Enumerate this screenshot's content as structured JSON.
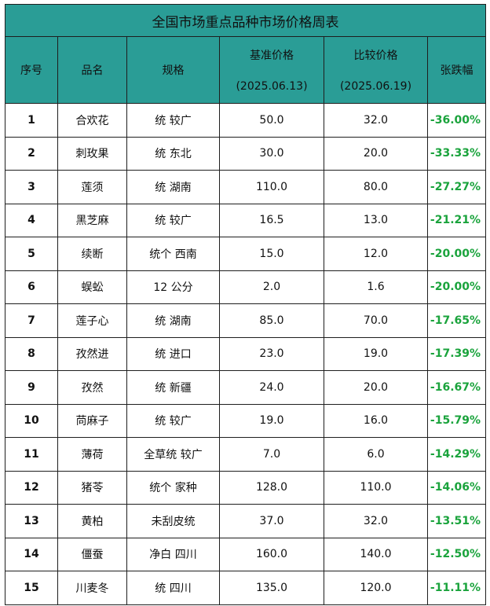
{
  "title": "全国市场重点品种市场价格周表",
  "headers": {
    "idx": "序号",
    "name": "品名",
    "spec": "规格",
    "base_label": "基准价格",
    "base_date": "(2025.06.13)",
    "cmp_label": "比较价格",
    "cmp_date": "(2025.06.19)",
    "change": "张跌幅"
  },
  "rows": [
    {
      "idx": "1",
      "name": "合欢花",
      "spec": "统 较广",
      "base": "50.0",
      "cmp": "32.0",
      "change": "-36.00%"
    },
    {
      "idx": "2",
      "name": "刺玫果",
      "spec": "统 东北",
      "base": "30.0",
      "cmp": "20.0",
      "change": "-33.33%"
    },
    {
      "idx": "3",
      "name": "莲须",
      "spec": "统 湖南",
      "base": "110.0",
      "cmp": "80.0",
      "change": "-27.27%"
    },
    {
      "idx": "4",
      "name": "黑芝麻",
      "spec": "统 较广",
      "base": "16.5",
      "cmp": "13.0",
      "change": "-21.21%"
    },
    {
      "idx": "5",
      "name": "续断",
      "spec": "统个 西南",
      "base": "15.0",
      "cmp": "12.0",
      "change": "-20.00%"
    },
    {
      "idx": "6",
      "name": "蜈蚣",
      "spec": "12 公分",
      "base": "2.0",
      "cmp": "1.6",
      "change": "-20.00%"
    },
    {
      "idx": "7",
      "name": "莲子心",
      "spec": "统 湖南",
      "base": "85.0",
      "cmp": "70.0",
      "change": "-17.65%"
    },
    {
      "idx": "8",
      "name": "孜然进",
      "spec": "统 进口",
      "base": "23.0",
      "cmp": "19.0",
      "change": "-17.39%"
    },
    {
      "idx": "9",
      "name": "孜然",
      "spec": "统 新疆",
      "base": "24.0",
      "cmp": "20.0",
      "change": "-16.67%"
    },
    {
      "idx": "10",
      "name": "苘麻子",
      "spec": "统 较广",
      "base": "19.0",
      "cmp": "16.0",
      "change": "-15.79%"
    },
    {
      "idx": "11",
      "name": "薄荷",
      "spec": "全草统 较广",
      "base": "7.0",
      "cmp": "6.0",
      "change": "-14.29%"
    },
    {
      "idx": "12",
      "name": "猪苓",
      "spec": "统个 家种",
      "base": "128.0",
      "cmp": "110.0",
      "change": "-14.06%"
    },
    {
      "idx": "13",
      "name": "黄柏",
      "spec": "未刮皮统",
      "base": "37.0",
      "cmp": "32.0",
      "change": "-13.51%"
    },
    {
      "idx": "14",
      "name": "僵蚕",
      "spec": "净白 四川",
      "base": "160.0",
      "cmp": "140.0",
      "change": "-12.50%"
    },
    {
      "idx": "15",
      "name": "川麦冬",
      "spec": "统 四川",
      "base": "135.0",
      "cmp": "120.0",
      "change": "-11.11%"
    }
  ],
  "colors": {
    "header_bg": "#2a9d96",
    "change_text": "#1aa33c",
    "border": "#1e1e1e"
  }
}
